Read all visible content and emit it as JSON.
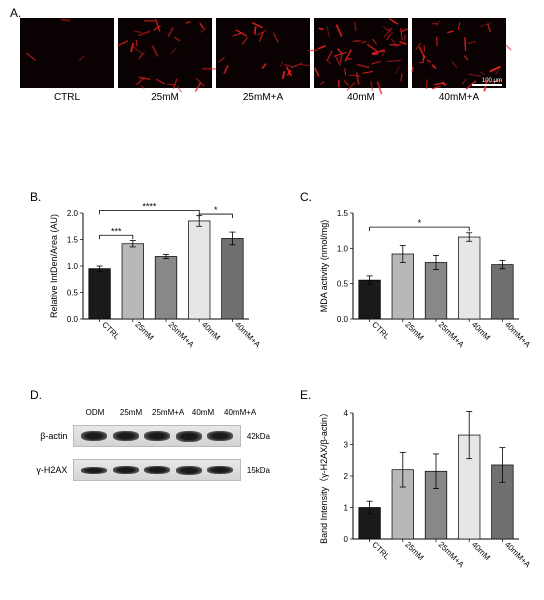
{
  "panelA": {
    "label": "A.",
    "conditions": [
      "CTRL",
      "25mM",
      "25mM+A",
      "40mM",
      "40mM+A"
    ],
    "fluor_intensity": [
      0.05,
      0.45,
      0.3,
      0.8,
      0.55
    ],
    "fluor_color": "#e82020",
    "bg_color": "#0a0202",
    "scalebar": "100 μm"
  },
  "panelB": {
    "label": "B.",
    "ylabel": "Relative IntDen/Area (AU)",
    "categories": [
      "CTRL",
      "25mM",
      "25mM+A",
      "40mM",
      "40mM+A"
    ],
    "values": [
      0.95,
      1.42,
      1.18,
      1.85,
      1.52
    ],
    "errors": [
      0.05,
      0.06,
      0.04,
      0.1,
      0.12
    ],
    "colors": [
      "#1a1a1a",
      "#b8b8b8",
      "#888888",
      "#e6e6e6",
      "#707070"
    ],
    "ylim": [
      0.0,
      2.0
    ],
    "ytick_step": 0.5,
    "sig": [
      {
        "from": 0,
        "to": 1,
        "y": 1.58,
        "label": "***"
      },
      {
        "from": 0,
        "to": 3,
        "y": 2.05,
        "label": "****"
      },
      {
        "from": 3,
        "to": 4,
        "y": 1.98,
        "label": "*"
      }
    ],
    "bar_width": 0.65,
    "chart_bg": "#ffffff"
  },
  "panelC": {
    "label": "C.",
    "ylabel": "MDA activity (nmol/mg)",
    "categories": [
      "CTRL",
      "25mM",
      "25mM+A",
      "40mM",
      "40mM+A"
    ],
    "values": [
      0.55,
      0.92,
      0.8,
      1.16,
      0.77
    ],
    "errors": [
      0.06,
      0.12,
      0.1,
      0.06,
      0.06
    ],
    "colors": [
      "#1a1a1a",
      "#b8b8b8",
      "#888888",
      "#e6e6e6",
      "#707070"
    ],
    "ylim": [
      0.0,
      1.5
    ],
    "ytick_step": 0.5,
    "sig": [
      {
        "from": 0,
        "to": 3,
        "y": 1.3,
        "label": "*"
      }
    ],
    "bar_width": 0.65,
    "chart_bg": "#ffffff"
  },
  "panelD": {
    "label": "D.",
    "lanes": [
      "ODM",
      "25mM",
      "25mM+A",
      "40mM",
      "40mM+A"
    ],
    "rows": [
      {
        "name": "β-actin",
        "kda": "42kDa",
        "band_heights": [
          10,
          10,
          10,
          11,
          10
        ]
      },
      {
        "name": "γ-H2AX",
        "kda": "15kDa",
        "band_heights": [
          7,
          8,
          8,
          9,
          8
        ]
      }
    ]
  },
  "panelE": {
    "label": "E.",
    "ylabel": "Band Intensity（γ-H2AX/β-actin）",
    "categories": [
      "CTRL",
      "25mM",
      "25mM+A",
      "40mM",
      "40mM+A"
    ],
    "values": [
      1.0,
      2.2,
      2.15,
      3.3,
      2.35
    ],
    "errors": [
      0.2,
      0.55,
      0.55,
      0.75,
      0.55
    ],
    "colors": [
      "#1a1a1a",
      "#b8b8b8",
      "#888888",
      "#e6e6e6",
      "#707070"
    ],
    "ylim": [
      0,
      4
    ],
    "ytick_step": 1,
    "sig": [],
    "bar_width": 0.65,
    "chart_bg": "#ffffff"
  },
  "layout": {
    "font_family": "Arial",
    "label_fontsize": 12,
    "axis_fontsize": 9
  }
}
